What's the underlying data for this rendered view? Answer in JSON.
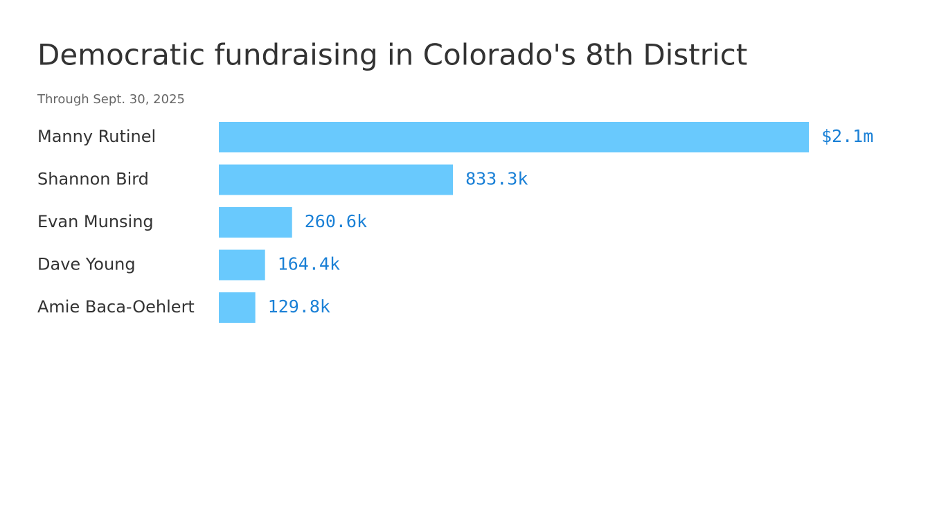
{
  "chart_data": {
    "type": "bar",
    "orientation": "horizontal",
    "title": "Democratic fundraising in Colorado's 8th District",
    "subtitle": "Through Sept. 30, 2025",
    "categories": [
      "Manny Rutinel",
      "Shannon Bird",
      "Evan Munsing",
      "Dave Young",
      "Amie Baca-Oehlert"
    ],
    "values": [
      2100000,
      833300,
      260600,
      164400,
      129800
    ],
    "value_labels": [
      "$2.1m",
      "833.3k",
      "260.6k",
      "164.4k",
      "129.8k"
    ],
    "color": "#69c9fd",
    "label_color": "#1a80d6"
  }
}
